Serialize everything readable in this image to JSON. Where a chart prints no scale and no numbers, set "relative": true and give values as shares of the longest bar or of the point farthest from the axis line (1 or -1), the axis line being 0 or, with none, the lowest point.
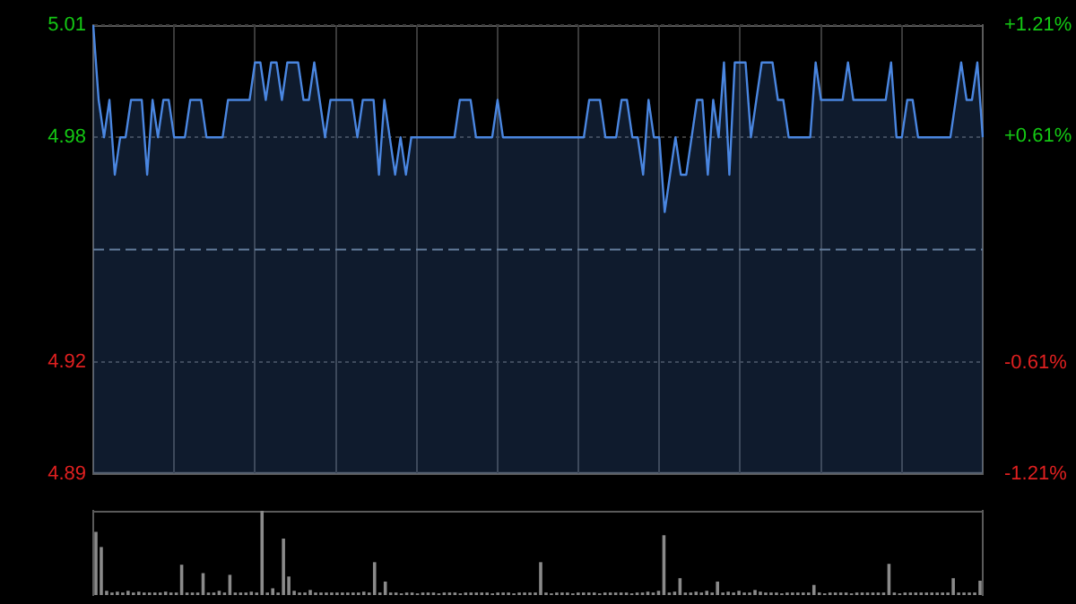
{
  "chart_data": [
    {
      "type": "area",
      "categories": [
        null,
        null,
        null,
        null,
        null,
        null,
        null,
        null,
        null,
        null,
        null,
        null,
        null,
        null,
        null,
        null,
        null,
        null,
        null,
        null,
        null,
        null,
        null,
        null,
        null,
        null,
        null,
        null,
        null,
        null,
        null,
        null,
        null,
        null,
        null,
        null,
        null,
        null,
        null,
        null,
        null,
        null,
        null,
        null,
        null,
        null,
        null,
        null,
        null,
        null,
        null,
        null,
        null,
        null,
        null,
        null,
        null,
        null,
        null,
        null,
        null,
        null,
        null,
        null,
        null,
        null,
        null,
        null,
        null,
        null,
        null,
        null,
        null,
        null,
        null,
        null,
        null,
        null,
        null,
        null,
        null,
        null,
        null,
        null,
        null,
        null,
        null,
        null,
        null,
        null,
        null,
        null,
        null,
        null,
        null,
        null,
        null,
        null,
        null,
        null,
        null,
        null,
        null,
        null,
        null,
        null,
        null,
        null,
        null,
        null,
        null,
        null,
        null,
        null,
        null,
        null,
        null,
        null,
        null,
        null,
        null,
        null,
        null,
        null,
        null,
        null,
        null,
        null,
        null,
        null,
        null,
        null,
        null,
        null,
        null,
        null,
        null,
        null,
        null,
        null,
        null,
        null,
        null,
        null,
        null,
        null,
        null,
        null,
        null,
        null,
        null,
        null,
        null,
        null,
        null,
        null,
        null,
        null,
        null,
        null,
        null,
        null,
        null,
        null,
        null,
        null
      ],
      "series": [
        {
          "color": "#4a86e0",
          "values": [
            5.01,
            4.99,
            4.98,
            4.99,
            4.97,
            4.98,
            4.98,
            4.99,
            4.99,
            4.99,
            4.97,
            4.99,
            4.98,
            4.99,
            4.99,
            4.98,
            4.98,
            4.98,
            4.99,
            4.99,
            4.99,
            4.98,
            4.98,
            4.98,
            4.98,
            4.99,
            4.99,
            4.99,
            4.99,
            4.99,
            5.0,
            5.0,
            4.99,
            5.0,
            5.0,
            4.99,
            5.0,
            5.0,
            5.0,
            4.99,
            4.99,
            5.0,
            4.99,
            4.98,
            4.99,
            4.99,
            4.99,
            4.99,
            4.99,
            4.98,
            4.99,
            4.99,
            4.99,
            4.97,
            4.99,
            4.98,
            4.97,
            4.98,
            4.97,
            4.98,
            4.98,
            4.98,
            4.98,
            4.98,
            4.98,
            4.98,
            4.98,
            4.98,
            4.99,
            4.99,
            4.99,
            4.98,
            4.98,
            4.98,
            4.98,
            4.99,
            4.98,
            4.98,
            4.98,
            4.98,
            4.98,
            4.98,
            4.98,
            4.98,
            4.98,
            4.98,
            4.98,
            4.98,
            4.98,
            4.98,
            4.98,
            4.98,
            4.99,
            4.99,
            4.99,
            4.98,
            4.98,
            4.98,
            4.99,
            4.99,
            4.98,
            4.98,
            4.97,
            4.99,
            4.98,
            4.98,
            4.96,
            4.97,
            4.98,
            4.97,
            4.97,
            4.98,
            4.99,
            4.99,
            4.97,
            4.99,
            4.98,
            5.0,
            4.97,
            5.0,
            5.0,
            5.0,
            4.98,
            4.99,
            5.0,
            5.0,
            5.0,
            4.99,
            4.99,
            4.98,
            4.98,
            4.98,
            4.98,
            4.98,
            5.0,
            4.99,
            4.99,
            4.99,
            4.99,
            4.99,
            5.0,
            4.99,
            4.99,
            4.99,
            4.99,
            4.99,
            4.99,
            4.99,
            5.0,
            4.98,
            4.98,
            4.99,
            4.99,
            4.98,
            4.98,
            4.98,
            4.98,
            4.98,
            4.98,
            4.98,
            4.99,
            5.0,
            4.99,
            4.99,
            5.0,
            4.98
          ]
        }
      ],
      "ylim": [
        4.89,
        5.01
      ],
      "yticks": [
        5.01,
        4.98,
        4.92,
        4.89
      ],
      "y2lim": [
        -1.21,
        1.21
      ],
      "y2ticks": [
        {
          "value": 1.21,
          "label": "+1.21%"
        },
        {
          "value": 0.61,
          "label": "+0.61%"
        },
        {
          "value": -0.61,
          "label": "-0.61%"
        },
        {
          "value": -1.21,
          "label": "-1.21%"
        }
      ],
      "ref_lines": [
        {
          "axis": "y",
          "value": 4.95,
          "line_style": "dashed"
        }
      ],
      "grid": true,
      "legend": false,
      "tick_labels": "y",
      "marker": "none",
      "line_style": "solid"
    },
    {
      "type": "bar",
      "relative": true,
      "categories": [
        null,
        null,
        null,
        null,
        null,
        null,
        null,
        null,
        null,
        null,
        null,
        null,
        null,
        null,
        null,
        null,
        null,
        null,
        null,
        null,
        null,
        null,
        null,
        null,
        null,
        null,
        null,
        null,
        null,
        null,
        null,
        null,
        null,
        null,
        null,
        null,
        null,
        null,
        null,
        null,
        null,
        null,
        null,
        null,
        null,
        null,
        null,
        null,
        null,
        null,
        null,
        null,
        null,
        null,
        null,
        null,
        null,
        null,
        null,
        null,
        null,
        null,
        null,
        null,
        null,
        null,
        null,
        null,
        null,
        null,
        null,
        null,
        null,
        null,
        null,
        null,
        null,
        null,
        null,
        null,
        null,
        null,
        null,
        null,
        null,
        null,
        null,
        null,
        null,
        null,
        null,
        null,
        null,
        null,
        null,
        null,
        null,
        null,
        null,
        null,
        null,
        null,
        null,
        null,
        null,
        null,
        null,
        null,
        null,
        null,
        null,
        null,
        null,
        null,
        null,
        null,
        null,
        null,
        null,
        null,
        null,
        null,
        null,
        null,
        null,
        null,
        null,
        null,
        null,
        null,
        null,
        null,
        null,
        null,
        null,
        null,
        null,
        null,
        null,
        null,
        null,
        null,
        null,
        null,
        null,
        null,
        null,
        null,
        null,
        null,
        null,
        null,
        null,
        null,
        null,
        null,
        null,
        null,
        null,
        null,
        null,
        null,
        null,
        null,
        null,
        null
      ],
      "series": [
        {
          "color": "#8a8a8a",
          "values": [
            0.75,
            0.57,
            0.05,
            0.03,
            0.04,
            0.03,
            0.05,
            0.03,
            0.04,
            0.03,
            0.03,
            0.03,
            0.03,
            0.04,
            0.03,
            0.03,
            0.36,
            0.03,
            0.03,
            0.03,
            0.26,
            0.03,
            0.03,
            0.05,
            0.03,
            0.24,
            0.03,
            0.03,
            0.03,
            0.04,
            0.03,
            1,
            0.03,
            0.08,
            0.03,
            0.67,
            0.22,
            0.05,
            0.03,
            0.03,
            0.06,
            0.03,
            0.03,
            0.03,
            0.03,
            0.03,
            0.03,
            0.03,
            0.03,
            0.03,
            0.04,
            0.03,
            0.39,
            0.03,
            0.16,
            0.03,
            0.03,
            0.02,
            0.03,
            0.03,
            0.02,
            0.03,
            0.03,
            0.03,
            0.02,
            0.03,
            0.03,
            0.03,
            0.02,
            0.03,
            0.03,
            0.03,
            0.03,
            0.03,
            0.02,
            0.03,
            0.03,
            0.03,
            0.02,
            0.03,
            0.03,
            0.03,
            0.03,
            0.39,
            0.03,
            0.02,
            0.03,
            0.03,
            0.03,
            0.02,
            0.03,
            0.03,
            0.03,
            0.03,
            0.02,
            0.03,
            0.03,
            0.03,
            0.03,
            0.03,
            0.02,
            0.03,
            0.03,
            0.04,
            0.03,
            0.05,
            0.71,
            0.03,
            0.04,
            0.2,
            0.03,
            0.03,
            0.04,
            0.03,
            0.05,
            0.03,
            0.16,
            0.03,
            0.04,
            0.03,
            0.05,
            0.03,
            0.03,
            0.06,
            0.04,
            0.03,
            0.03,
            0.03,
            0.02,
            0.03,
            0.03,
            0.03,
            0.03,
            0.03,
            0.12,
            0.03,
            0.02,
            0.03,
            0.03,
            0.03,
            0.03,
            0.02,
            0.03,
            0.03,
            0.03,
            0.03,
            0.03,
            0.03,
            0.37,
            0.03,
            0.02,
            0.03,
            0.03,
            0.03,
            0.03,
            0.03,
            0.03,
            0.03,
            0.03,
            0.03,
            0.2,
            0.03,
            0.03,
            0.03,
            0.03,
            0.17
          ]
        }
      ],
      "legend": false,
      "tick_labels": false
    }
  ]
}
